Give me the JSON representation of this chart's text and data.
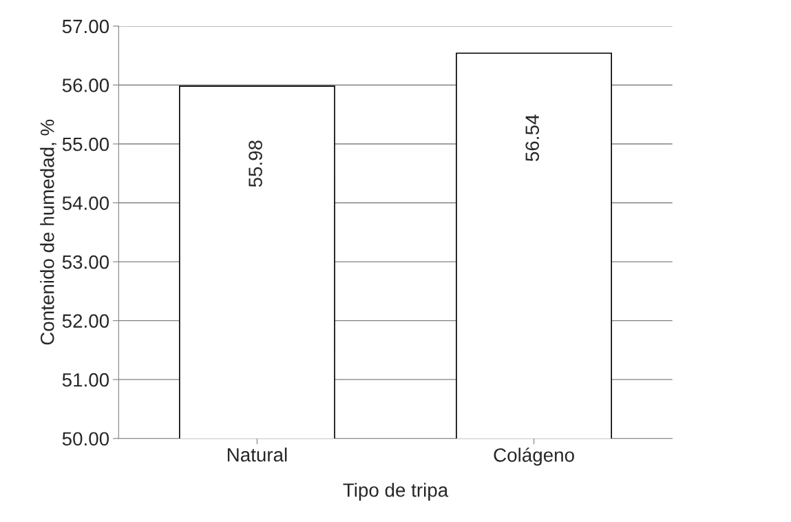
{
  "chart_data": {
    "type": "bar",
    "xlabel": "Tipo de tripa",
    "ylabel": "Contenido de humedad, %",
    "categories": [
      "Natural",
      "Colágeno"
    ],
    "values": [
      55.98,
      56.54
    ],
    "color": "#ffffff",
    "ylim": [
      50,
      57
    ],
    "yticks": [
      {
        "value": 50,
        "label": "50.00"
      },
      {
        "value": 51,
        "label": "51.00"
      },
      {
        "value": 52,
        "label": "52.00"
      },
      {
        "value": 53,
        "label": "53.00"
      },
      {
        "value": 54,
        "label": "54.00"
      },
      {
        "value": 55,
        "label": "55.00"
      },
      {
        "value": 56,
        "label": "56.00"
      },
      {
        "value": 57,
        "label": "57.00"
      }
    ],
    "grid": "y",
    "data_labels": true,
    "legend": false
  }
}
